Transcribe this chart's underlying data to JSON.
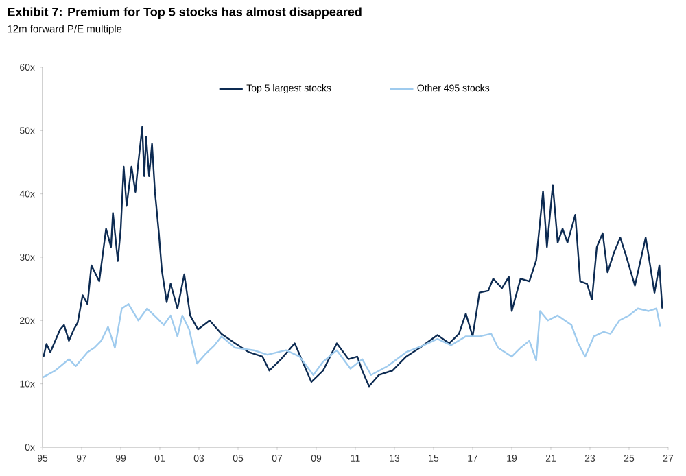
{
  "chart_data": {
    "type": "line",
    "title": "Exhibit 7: Premium for Top 5 stocks has almost disappeared",
    "subtitle": "12m forward P/E multiple",
    "xlim": [
      1995,
      2027
    ],
    "ylim": [
      0,
      60
    ],
    "xticks": [
      {
        "value": 1995,
        "label": "95"
      },
      {
        "value": 1997,
        "label": "97"
      },
      {
        "value": 1999,
        "label": "99"
      },
      {
        "value": 2001,
        "label": "01"
      },
      {
        "value": 2003,
        "label": "03"
      },
      {
        "value": 2005,
        "label": "05"
      },
      {
        "value": 2007,
        "label": "07"
      },
      {
        "value": 2009,
        "label": "09"
      },
      {
        "value": 2011,
        "label": "11"
      },
      {
        "value": 2013,
        "label": "13"
      },
      {
        "value": 2015,
        "label": "15"
      },
      {
        "value": 2017,
        "label": "17"
      },
      {
        "value": 2019,
        "label": "19"
      },
      {
        "value": 2021,
        "label": "21"
      },
      {
        "value": 2023,
        "label": "23"
      },
      {
        "value": 2025,
        "label": "25"
      },
      {
        "value": 2027,
        "label": "27"
      }
    ],
    "yticks": [
      {
        "value": 0,
        "label": "0x"
      },
      {
        "value": 10,
        "label": "10x"
      },
      {
        "value": 20,
        "label": "20x"
      },
      {
        "value": 30,
        "label": "30x"
      },
      {
        "value": 40,
        "label": "40x"
      },
      {
        "value": 50,
        "label": "50x"
      },
      {
        "value": 60,
        "label": "60x"
      }
    ],
    "legend": "top",
    "grid": false,
    "marker": "none",
    "line_style": "solid",
    "series": [
      {
        "name": "Top 5 largest stocks",
        "color": "#0d2b52",
        "x": [
          1995.05,
          1995.2,
          1995.4,
          1995.9,
          1996.1,
          1996.35,
          1996.6,
          1996.8,
          1997.05,
          1997.3,
          1997.5,
          1997.9,
          1998.25,
          1998.5,
          1998.6,
          1998.85,
          1999.0,
          1999.15,
          1999.3,
          1999.55,
          1999.75,
          1999.9,
          2000.1,
          2000.2,
          2000.3,
          2000.45,
          2000.6,
          2000.75,
          2000.95,
          2001.1,
          2001.35,
          2001.55,
          2001.9,
          2002.25,
          2002.55,
          2002.95,
          2003.55,
          2004.15,
          2004.85,
          2005.55,
          2006.25,
          2006.6,
          2007.2,
          2007.9,
          2008.4,
          2008.75,
          2009.35,
          2010.05,
          2010.65,
          2011.1,
          2011.35,
          2011.7,
          2012.2,
          2012.9,
          2013.6,
          2014.3,
          2015.2,
          2015.8,
          2016.3,
          2016.65,
          2017.0,
          2017.35,
          2017.8,
          2018.05,
          2018.5,
          2018.85,
          2019.0,
          2019.45,
          2019.9,
          2020.25,
          2020.6,
          2020.8,
          2021.1,
          2021.35,
          2021.6,
          2021.85,
          2022.25,
          2022.5,
          2022.85,
          2023.1,
          2023.35,
          2023.65,
          2023.9,
          2024.25,
          2024.55,
          2024.85,
          2025.3,
          2025.85,
          2026.3,
          2026.55,
          2026.7
        ],
        "values": [
          14.3,
          16.3,
          15,
          18.6,
          19.3,
          16.8,
          18.6,
          19.7,
          24,
          22.6,
          28.7,
          26.2,
          34.5,
          31.6,
          37,
          29.4,
          34.5,
          44.3,
          38.1,
          44.3,
          40.3,
          45,
          50.6,
          42.8,
          49,
          42.8,
          47.9,
          40.3,
          33.8,
          28,
          22.9,
          25.8,
          21.9,
          27.3,
          20.8,
          18.6,
          20,
          17.9,
          16.4,
          15,
          14.3,
          12.1,
          13.9,
          16.4,
          12.8,
          10.3,
          12.1,
          16.4,
          13.9,
          14.3,
          12.1,
          9.6,
          11.4,
          12.1,
          14.3,
          15.7,
          17.7,
          16.4,
          17.9,
          21.1,
          17.5,
          24.4,
          24.7,
          26.6,
          25.1,
          26.9,
          21.5,
          26.6,
          26.2,
          29.5,
          40.4,
          31.6,
          41.4,
          32.3,
          34.5,
          32.3,
          36.7,
          26.2,
          25.8,
          23.3,
          31.6,
          33.8,
          27.6,
          30.9,
          33.1,
          30.2,
          25.5,
          33.1,
          24.4,
          28.7,
          21.9
        ]
      },
      {
        "name": "Other 495 stocks",
        "color": "#9fcbee",
        "x": [
          1995.0,
          1995.65,
          1996.35,
          1996.7,
          1997.3,
          1997.65,
          1998.0,
          1998.35,
          1998.7,
          1999.05,
          1999.4,
          1999.9,
          2000.35,
          2000.85,
          2001.2,
          2001.55,
          2001.9,
          2002.15,
          2002.5,
          2002.9,
          2003.3,
          2003.8,
          2004.15,
          2004.85,
          2005.8,
          2006.5,
          2007.45,
          2008.15,
          2008.85,
          2009.35,
          2010.05,
          2010.75,
          2011.35,
          2011.8,
          2012.65,
          2013.6,
          2014.5,
          2015.2,
          2015.9,
          2016.65,
          2017.35,
          2017.95,
          2018.3,
          2019.0,
          2019.45,
          2019.9,
          2020.25,
          2020.45,
          2020.85,
          2021.35,
          2022.05,
          2022.4,
          2022.75,
          2023.2,
          2023.7,
          2024.05,
          2024.5,
          2025.0,
          2025.45,
          2026.0,
          2026.4,
          2026.6
        ],
        "values": [
          11,
          12.1,
          13.9,
          12.8,
          15,
          15.7,
          16.8,
          19,
          15.7,
          21.9,
          22.6,
          20,
          21.9,
          20.4,
          19.3,
          20.8,
          17.5,
          20.8,
          18.6,
          13.2,
          14.6,
          16.1,
          17.5,
          15.7,
          15.3,
          14.6,
          15.3,
          14.3,
          11.4,
          13.5,
          15.3,
          12.4,
          13.9,
          11.4,
          12.8,
          15,
          16.1,
          17.1,
          16.1,
          17.5,
          17.5,
          17.9,
          15.7,
          14.3,
          15.7,
          16.8,
          13.7,
          21.5,
          20,
          20.8,
          19.3,
          16.4,
          14.3,
          17.5,
          18.2,
          17.9,
          20,
          20.8,
          21.9,
          21.5,
          21.9,
          19
        ]
      }
    ]
  }
}
